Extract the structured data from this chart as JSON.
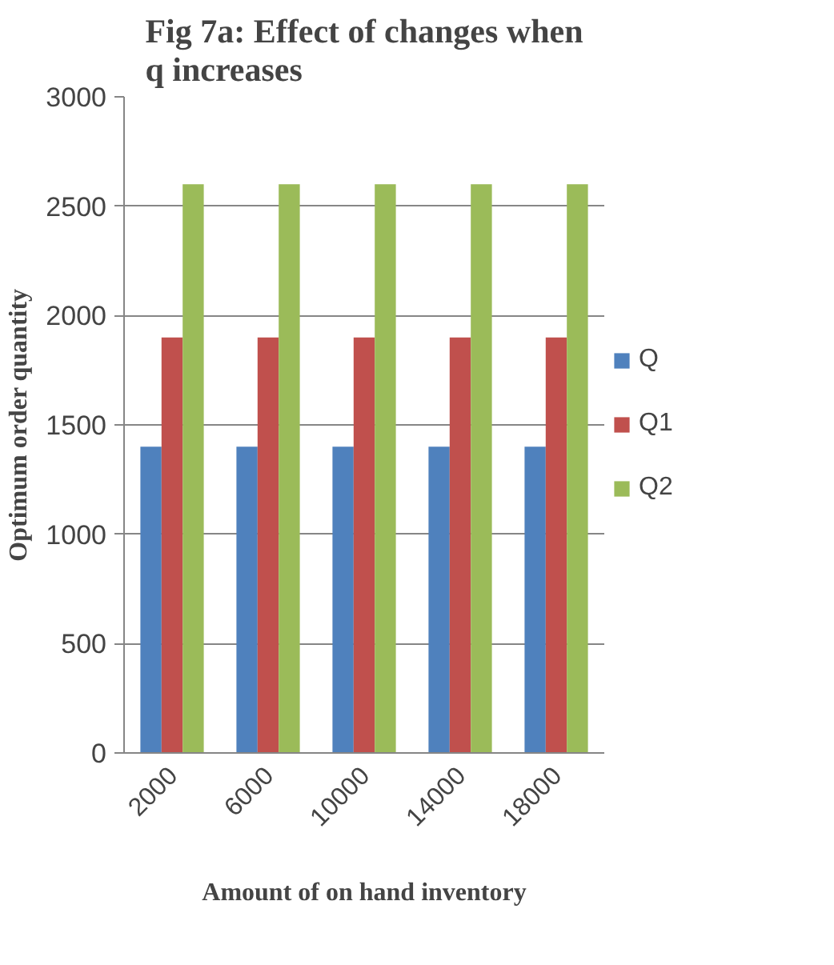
{
  "chart_data": {
    "type": "bar",
    "title": "Fig 7a: Effect of changes when q increases",
    "xlabel": "Amount of on hand inventory",
    "ylabel": "Optimum order quantity",
    "categories": [
      "2000",
      "6000",
      "10000",
      "14000",
      "18000"
    ],
    "series": [
      {
        "name": "Q",
        "color": "#4f81bd",
        "values": [
          1400,
          1400,
          1400,
          1400,
          1400
        ]
      },
      {
        "name": "Q1",
        "color": "#c0504d",
        "values": [
          1900,
          1900,
          1900,
          1900,
          1900
        ]
      },
      {
        "name": "Q2",
        "color": "#9bbb59",
        "values": [
          2600,
          2600,
          2600,
          2600,
          2600
        ]
      }
    ],
    "ylim": [
      0,
      3000
    ],
    "yticks": [
      0,
      500,
      1000,
      1500,
      2000,
      2500,
      3000
    ],
    "grid": "y",
    "legend": "right"
  }
}
